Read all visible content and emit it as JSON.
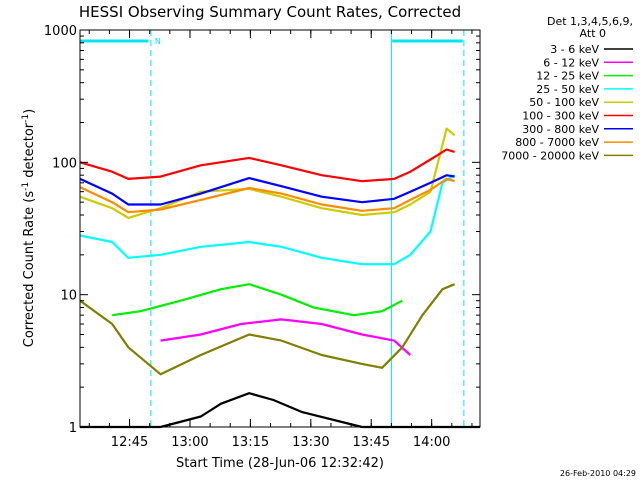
{
  "chart_data": {
    "type": "line",
    "title": "HESSI Observing Summary Count Rates, Corrected",
    "xlabel": "Start Time (28-Jun-06 12:32:42)",
    "ylabel": "Corrected Count Rate (s",
    "ylabel_sup1": "-1",
    "ylabel_mid": " detector",
    "ylabel_sup2": "-1",
    "ylabel_end": ")",
    "y_scale": "log",
    "ylim": [
      1,
      1000
    ],
    "x_ticks": [
      "12:45",
      "13:00",
      "13:15",
      "13:30",
      "13:45",
      "14:00"
    ],
    "x_tick_minutes": [
      12.3,
      27.3,
      42.3,
      57.3,
      72.3,
      87.3
    ],
    "xlim_minutes": [
      0,
      99.3
    ],
    "y_ticks": [
      "1",
      "10",
      "100",
      "1000"
    ],
    "y_tick_values": [
      1,
      10,
      100,
      1000
    ],
    "legend_header": [
      "Det 1,3,4,5,6,9,",
      "Att 0"
    ],
    "legend_placement": "right",
    "annotation_label": "N",
    "timestamp": "26-Feb-2010 04:29",
    "annotation_color": "#00e5ee",
    "series": [
      {
        "name": "3 - 6 keV",
        "color": "#000000",
        "x": [
          0,
          20,
          30,
          35,
          42,
          48,
          55,
          70,
          80,
          99.3
        ],
        "y": [
          1,
          1,
          1.2,
          1.5,
          1.8,
          1.6,
          1.3,
          1,
          1,
          1
        ]
      },
      {
        "name": "6 - 12 keV",
        "color": "#ff00ff",
        "x": [
          20,
          30,
          40,
          50,
          60,
          70,
          78,
          82
        ],
        "y": [
          4.5,
          5,
          6,
          6.5,
          6,
          5,
          4.5,
          3.5
        ]
      },
      {
        "name": "12 - 25 keV",
        "color": "#00ee00",
        "x": [
          8,
          15,
          25,
          35,
          42,
          50,
          58,
          68,
          75,
          80
        ],
        "y": [
          7,
          7.5,
          9,
          11,
          12,
          10,
          8,
          7,
          7.5,
          9
        ]
      },
      {
        "name": "25 - 50 keV",
        "color": "#00ffff",
        "x": [
          0,
          8,
          12,
          20,
          30,
          42,
          50,
          60,
          70,
          78,
          82,
          87,
          90,
          93
        ],
        "y": [
          28,
          25,
          19,
          20,
          23,
          25,
          23,
          19,
          17,
          17,
          20,
          30,
          70,
          80
        ]
      },
      {
        "name": "50 - 100 keV",
        "color": "#cccc00",
        "x": [
          0,
          8,
          12,
          20,
          30,
          42,
          50,
          60,
          70,
          78,
          82,
          87,
          91,
          93
        ],
        "y": [
          55,
          45,
          38,
          45,
          60,
          63,
          55,
          45,
          40,
          42,
          48,
          60,
          180,
          160
        ]
      },
      {
        "name": "100 - 300 keV",
        "color": "#ff0000",
        "x": [
          0,
          8,
          12,
          20,
          30,
          42,
          50,
          60,
          70,
          78,
          82,
          87,
          91,
          93
        ],
        "y": [
          100,
          85,
          75,
          78,
          95,
          108,
          95,
          80,
          72,
          75,
          85,
          105,
          125,
          120
        ]
      },
      {
        "name": "300 - 800 keV",
        "color": "#0000ff",
        "x": [
          0,
          8,
          12,
          20,
          30,
          42,
          50,
          60,
          70,
          78,
          82,
          87,
          91,
          93
        ],
        "y": [
          75,
          58,
          48,
          48,
          58,
          76,
          66,
          55,
          50,
          53,
          60,
          70,
          80,
          78
        ]
      },
      {
        "name": "800 - 7000 keV",
        "color": "#ff8c00",
        "x": [
          0,
          8,
          12,
          20,
          30,
          42,
          50,
          60,
          70,
          78,
          82,
          87,
          91,
          93
        ],
        "y": [
          65,
          50,
          42,
          44,
          52,
          64,
          58,
          48,
          43,
          45,
          52,
          62,
          75,
          72
        ]
      },
      {
        "name": "7000 - 20000 keV",
        "color": "#7f7f00",
        "x": [
          0,
          8,
          12,
          20,
          30,
          42,
          50,
          60,
          70,
          75,
          80,
          85,
          90,
          93
        ],
        "y": [
          9,
          6,
          4,
          2.5,
          3.5,
          5,
          4.5,
          3.5,
          3,
          2.8,
          4,
          7,
          11,
          12
        ]
      }
    ]
  }
}
